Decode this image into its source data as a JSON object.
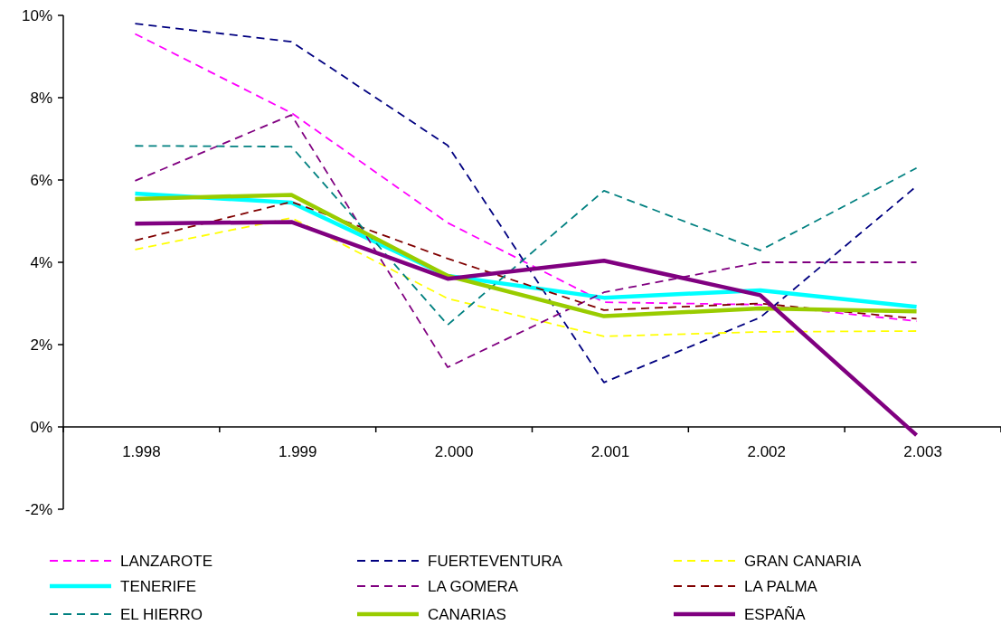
{
  "chart_data": {
    "type": "line",
    "categories": [
      "1.998",
      "1.999",
      "2.000",
      "2.001",
      "2.002",
      "2.003"
    ],
    "ylim": [
      -2,
      10
    ],
    "yticks": [
      {
        "value": -2,
        "label": "-2%"
      },
      {
        "value": 0,
        "label": "0%"
      },
      {
        "value": 2,
        "label": "2%"
      },
      {
        "value": 4,
        "label": "4%"
      },
      {
        "value": 6,
        "label": "6%"
      },
      {
        "value": 8,
        "label": "8%"
      },
      {
        "value": 10,
        "label": "10%"
      }
    ],
    "grid": false,
    "legend": "bottom",
    "marker": "none",
    "series": [
      {
        "name": "LANZAROTE",
        "color": "#ff00ff",
        "line_style": "dashed",
        "values": [
          9.55,
          7.63,
          4.96,
          3.03,
          2.97,
          2.57
        ]
      },
      {
        "name": "FUERTEVENTURA",
        "color": "#000080",
        "line_style": "dashed",
        "values": [
          9.8,
          9.36,
          6.84,
          1.08,
          2.66,
          5.85
        ]
      },
      {
        "name": "GRAN CANARIA",
        "color": "#ffff00",
        "line_style": "dashed",
        "values": [
          4.31,
          5.08,
          3.12,
          2.2,
          2.31,
          2.33
        ]
      },
      {
        "name": "TENERIFE",
        "color": "#00ffff",
        "line_style": "solid",
        "values": [
          5.67,
          5.45,
          3.67,
          3.14,
          3.32,
          2.92
        ]
      },
      {
        "name": "LA GOMERA",
        "color": "#800080",
        "line_style": "dashed",
        "values": [
          5.98,
          7.58,
          1.45,
          3.27,
          4.0,
          4.0
        ]
      },
      {
        "name": "LA PALMA",
        "color": "#800000",
        "line_style": "dashed",
        "values": [
          4.53,
          5.47,
          4.09,
          2.84,
          3.0,
          2.63
        ]
      },
      {
        "name": "EL HIERRO",
        "color": "#008080",
        "line_style": "dashed",
        "values": [
          6.83,
          6.81,
          2.48,
          5.74,
          4.29,
          6.29
        ]
      },
      {
        "name": "CANARIAS",
        "color": "#99cc00",
        "line_style": "solid",
        "values": [
          5.54,
          5.64,
          3.67,
          2.69,
          2.88,
          2.81
        ]
      },
      {
        "name": "ESPAÑA",
        "color": "#800080",
        "line_style": "solid",
        "values": [
          4.94,
          4.98,
          3.6,
          4.04,
          3.2,
          -0.2
        ]
      }
    ]
  }
}
